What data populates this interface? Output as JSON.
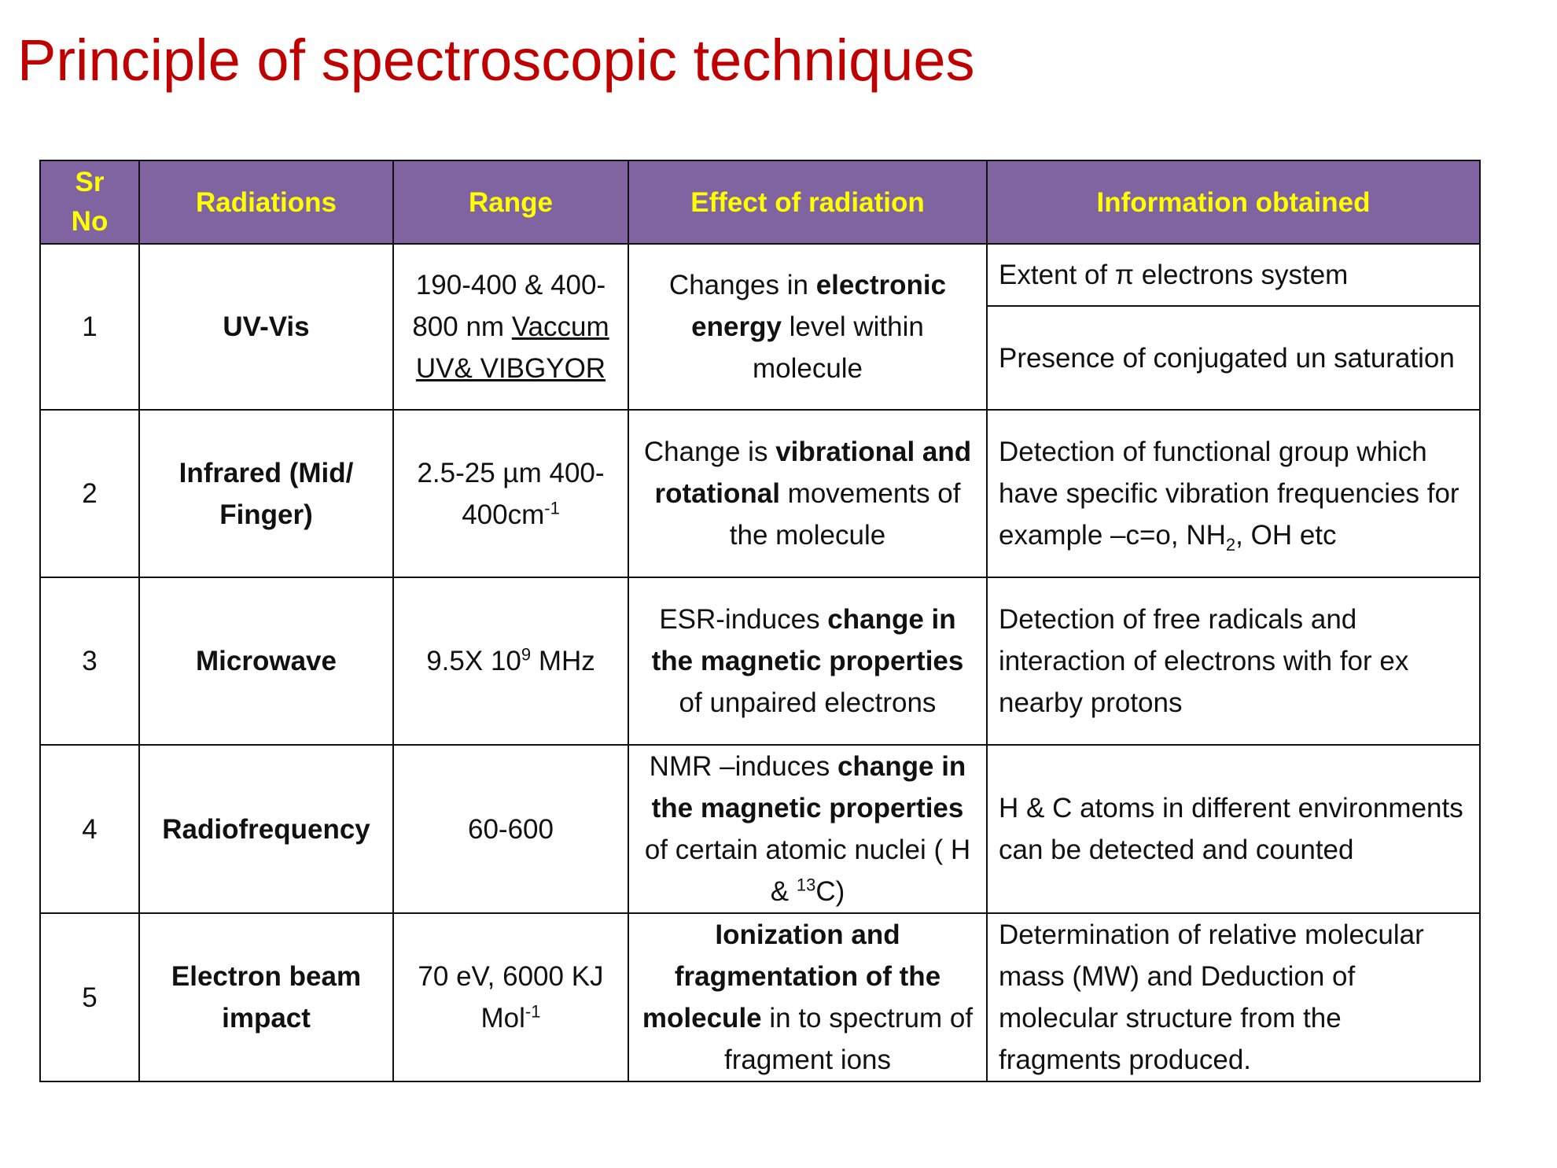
{
  "title": "Principle of spectroscopic techniques",
  "table": {
    "header": [
      "Sr No",
      "Radiations",
      "Range",
      "Effect  of radiation",
      "Information obtained"
    ],
    "rows": [
      {
        "sr": "1",
        "radiation": [
          {
            "text": "UV-Vis",
            "bold": true
          }
        ],
        "range": [
          {
            "text": "190-400 & 400-800 nm "
          },
          {
            "text": "Vaccum  UV& VIBGYOR",
            "underline": true
          }
        ],
        "effect": [
          {
            "text": "Changes in "
          },
          {
            "text": "electronic energy",
            "bold": true
          },
          {
            "text": " level within molecule"
          }
        ],
        "information": [
          [
            {
              "text": "Extent of π electrons system"
            }
          ],
          [
            {
              "text": "Presence of conjugated un saturation"
            }
          ]
        ]
      },
      {
        "sr": "2",
        "radiation": [
          {
            "text": "Infrared (Mid/ Finger)",
            "bold": true
          }
        ],
        "range": [
          {
            "text": "2.5-25 µm 400-400cm"
          },
          {
            "text": "-1",
            "sup": true
          }
        ],
        "effect": [
          {
            "text": "Change is "
          },
          {
            "text": "vibrational and rotational",
            "bold": true
          },
          {
            "text": " movements of the molecule"
          }
        ],
        "information": [
          [
            {
              "text": "Detection of functional group which have specific  vibration frequencies for example –c=o, NH"
            },
            {
              "text": "2",
              "sub": true
            },
            {
              "text": ", OH etc"
            }
          ]
        ]
      },
      {
        "sr": "3",
        "radiation": [
          {
            "text": "Microwave",
            "bold": true
          }
        ],
        "range": [
          {
            "text": "9.5X 10"
          },
          {
            "text": "9",
            "sup": true
          },
          {
            "text": " MHz"
          }
        ],
        "effect": [
          {
            "text": "ESR-induces "
          },
          {
            "text": "change in the magnetic properties",
            "bold": true
          },
          {
            "text": " of unpaired electrons"
          }
        ],
        "information": [
          [
            {
              "text": "Detection of free radicals and interaction of electrons with for ex nearby protons"
            }
          ]
        ]
      },
      {
        "sr": "4",
        "radiation": [
          {
            "text": "Radiofrequency",
            "bold": true
          }
        ],
        "range": [
          {
            "text": "60-600"
          }
        ],
        "effect": [
          {
            "text": "NMR –induces "
          },
          {
            "text": "change in the magnetic properties",
            "bold": true
          },
          {
            "text": " of certain atomic nuclei ( H & "
          },
          {
            "text": "13",
            "sup": true
          },
          {
            "text": "C)"
          }
        ],
        "information": [
          [
            {
              "text": "H & C atoms in different environments can be detected and counted"
            }
          ]
        ]
      },
      {
        "sr": "5",
        "radiation": [
          {
            "text": "Electron beam impact",
            "bold": true
          }
        ],
        "range": [
          {
            "text": "70 eV, 6000 KJ Mol"
          },
          {
            "text": "-1",
            "sup": true
          }
        ],
        "effect": [
          {
            "text": "Ionization and fragmentation of the molecule",
            "bold": true
          },
          {
            "text": " in to spectrum of fragment ions"
          }
        ],
        "information": [
          [
            {
              "text": "Determination of relative molecular mass (MW) and Deduction of molecular structure from the fragments produced."
            }
          ]
        ]
      }
    ]
  }
}
